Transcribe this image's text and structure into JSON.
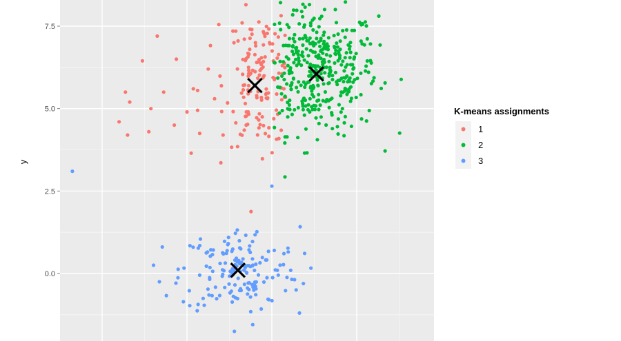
{
  "chart_data": {
    "type": "scatter",
    "title": "",
    "xlabel": "",
    "ylabel": "y",
    "ylim": [
      -1.3,
      8.1
    ],
    "xlim": [
      -3.6,
      5.2
    ],
    "y_ticks": [
      "0.0",
      "2.5",
      "5.0",
      "7.5"
    ],
    "grid": true,
    "legend": {
      "title": "K-means assignments",
      "placement": "right"
    },
    "series": [
      {
        "name": "1",
        "color": "#f8766d",
        "cluster_center": [
          -0.4,
          5.7
        ],
        "count": 180
      },
      {
        "name": "2",
        "color": "#00ba38",
        "cluster_center": [
          1.0,
          6.1
        ],
        "count": 420
      },
      {
        "name": "3",
        "color": "#619cff",
        "cluster_center": [
          -0.8,
          0.2
        ],
        "count": 170
      }
    ],
    "centroids": [
      {
        "x": -0.4,
        "y": 5.7,
        "marker": "X"
      },
      {
        "x": 1.05,
        "y": 6.05,
        "marker": "X"
      },
      {
        "x": -0.8,
        "y": 0.1,
        "marker": "X"
      }
    ],
    "point_color_green": "#00ba38",
    "point_color_red": "#f8766d",
    "point_color_blue": "#619cff",
    "panel_background": "#ebebeb",
    "grid_color": "#ffffff"
  }
}
